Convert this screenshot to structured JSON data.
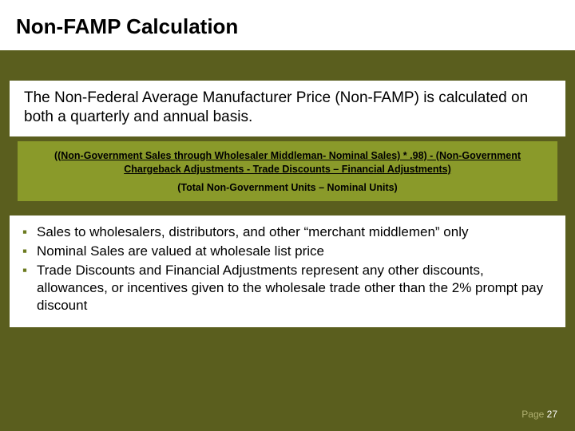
{
  "colors": {
    "background": "#5a5e1e",
    "panel": "#ffffff",
    "formula_bg": "#8a9a2a",
    "bullet_marker": "#6b7a1f",
    "footer_label": "#b0b070",
    "footer_number": "#ffffff"
  },
  "title": "Non-FAMP Calculation",
  "intro": "The Non-Federal Average Manufacturer Price (Non-FAMP) is calculated on both a quarterly and annual basis.",
  "formula": {
    "numerator_line1": "((Non-Government Sales through Wholesaler Middleman- Nominal Sales) * .98) - (Non-Government",
    "numerator_line2": "Chargeback Adjustments - Trade Discounts – Financial Adjustments)",
    "denominator": "(Total Non-Government Units – Nominal Units)"
  },
  "bullets": [
    "Sales to wholesalers, distributors, and other “merchant middlemen” only",
    "Nominal Sales are valued at wholesale list price",
    "Trade Discounts and Financial Adjustments represent any other discounts, allowances, or incentives given to the wholesale trade other than the 2% prompt pay discount"
  ],
  "footer": {
    "label": "Page ",
    "number": "27"
  }
}
